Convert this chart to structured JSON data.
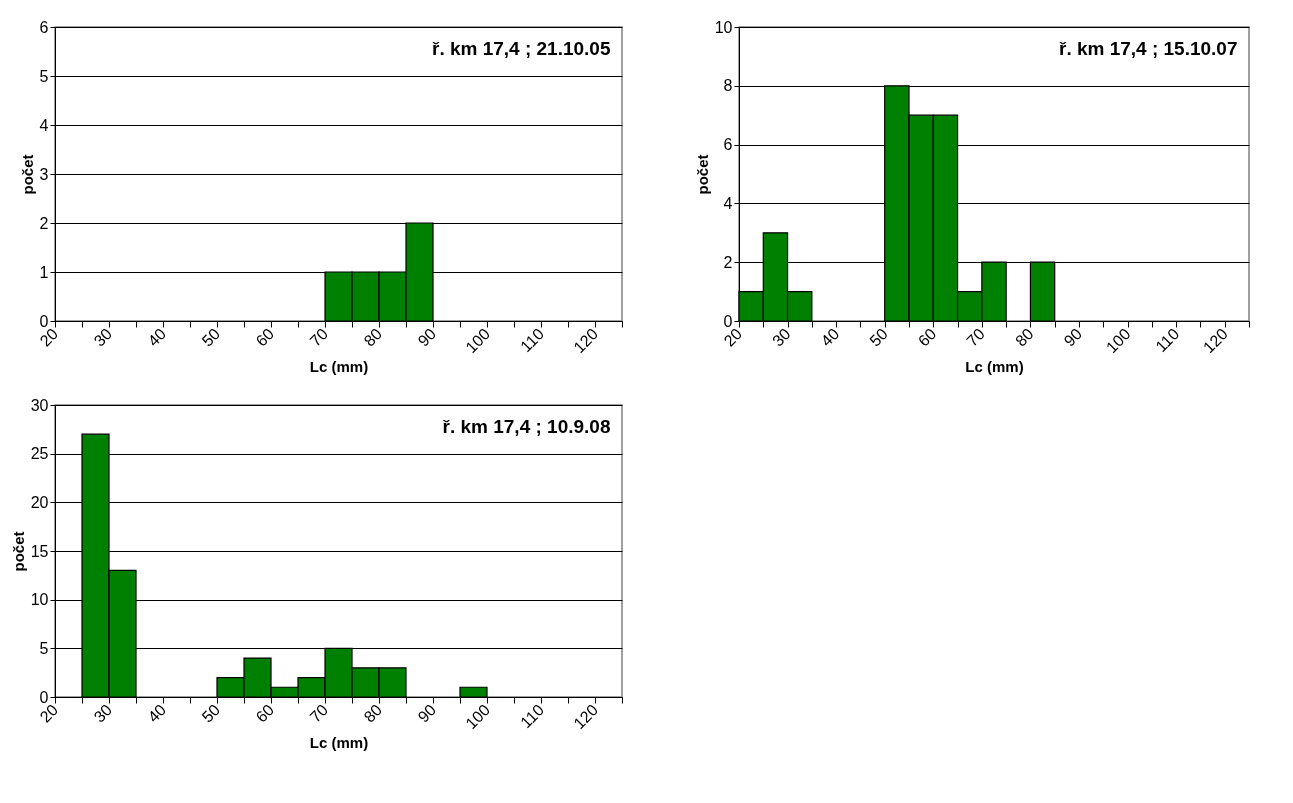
{
  "chart_data": [
    {
      "type": "histogram",
      "title": "ř. km 17,4 ; 21.10.05",
      "xlabel": "Lc (mm)",
      "ylabel": "počet",
      "color": "#008000",
      "grid": "y",
      "bins": [
        20,
        25,
        30,
        35,
        40,
        45,
        50,
        55,
        60,
        65,
        70,
        75,
        80,
        85,
        90,
        95,
        100,
        105,
        110,
        115,
        120,
        125
      ],
      "values": [
        0,
        0,
        0,
        0,
        0,
        0,
        0,
        0,
        0,
        0,
        1,
        1,
        1,
        2,
        0,
        0,
        0,
        0,
        0,
        0,
        0
      ],
      "xlim": [
        20,
        125
      ],
      "xticks": [
        20,
        {
          "value": 25,
          "label": null
        },
        30,
        {
          "value": 35,
          "label": null
        },
        40,
        {
          "value": 45,
          "label": null
        },
        50,
        {
          "value": 55,
          "label": null
        },
        60,
        {
          "value": 65,
          "label": null
        },
        70,
        {
          "value": 75,
          "label": null
        },
        80,
        {
          "value": 85,
          "label": null
        },
        90,
        {
          "value": 95,
          "label": null
        },
        100,
        {
          "value": 105,
          "label": null
        },
        110,
        {
          "value": 115,
          "label": null
        },
        120,
        {
          "value": 125,
          "label": null
        }
      ],
      "ylim": [
        0,
        6
      ],
      "yticks": [
        0,
        1,
        2,
        3,
        4,
        5,
        6
      ]
    },
    {
      "type": "histogram",
      "title": "ř. km 17,4 ; 15.10.07",
      "xlabel": "Lc (mm)",
      "ylabel": "počet",
      "color": "#008000",
      "grid": "y",
      "bins": [
        20,
        25,
        30,
        35,
        40,
        45,
        50,
        55,
        60,
        65,
        70,
        75,
        80,
        85,
        90,
        95,
        100,
        105,
        110,
        115,
        120,
        125
      ],
      "values": [
        1,
        3,
        1,
        0,
        0,
        0,
        8,
        7,
        7,
        1,
        2,
        0,
        2,
        0,
        0,
        0,
        0,
        0,
        0,
        0,
        0
      ],
      "xlim": [
        20,
        125
      ],
      "xticks": [
        20,
        {
          "value": 25,
          "label": null
        },
        30,
        {
          "value": 35,
          "label": null
        },
        40,
        {
          "value": 45,
          "label": null
        },
        50,
        {
          "value": 55,
          "label": null
        },
        60,
        {
          "value": 65,
          "label": null
        },
        70,
        {
          "value": 75,
          "label": null
        },
        80,
        {
          "value": 85,
          "label": null
        },
        90,
        {
          "value": 95,
          "label": null
        },
        100,
        {
          "value": 105,
          "label": null
        },
        110,
        {
          "value": 115,
          "label": null
        },
        120,
        {
          "value": 125,
          "label": null
        }
      ],
      "ylim": [
        0,
        10
      ],
      "yticks": [
        0,
        2,
        4,
        6,
        8,
        10
      ]
    },
    {
      "type": "histogram",
      "title": "ř. km 17,4 ; 10.9.08",
      "xlabel": "Lc (mm)",
      "ylabel": "počet",
      "color": "#008000",
      "grid": "y",
      "bins": [
        20,
        25,
        30,
        35,
        40,
        45,
        50,
        55,
        60,
        65,
        70,
        75,
        80,
        85,
        90,
        95,
        100,
        105,
        110,
        115,
        120,
        125
      ],
      "values": [
        0,
        27,
        13,
        0,
        0,
        0,
        2,
        4,
        1,
        2,
        5,
        3,
        3,
        0,
        0,
        1,
        0,
        0,
        0,
        0,
        0
      ],
      "xlim": [
        20,
        125
      ],
      "xticks": [
        20,
        {
          "value": 25,
          "label": null
        },
        30,
        {
          "value": 35,
          "label": null
        },
        40,
        {
          "value": 45,
          "label": null
        },
        50,
        {
          "value": 55,
          "label": null
        },
        60,
        {
          "value": 65,
          "label": null
        },
        70,
        {
          "value": 75,
          "label": null
        },
        80,
        {
          "value": 85,
          "label": null
        },
        90,
        {
          "value": 95,
          "label": null
        },
        100,
        {
          "value": 105,
          "label": null
        },
        110,
        {
          "value": 115,
          "label": null
        },
        120,
        {
          "value": 125,
          "label": null
        }
      ],
      "ylim": [
        0,
        30
      ],
      "yticks": [
        0,
        5,
        10,
        15,
        20,
        25,
        30
      ]
    }
  ]
}
